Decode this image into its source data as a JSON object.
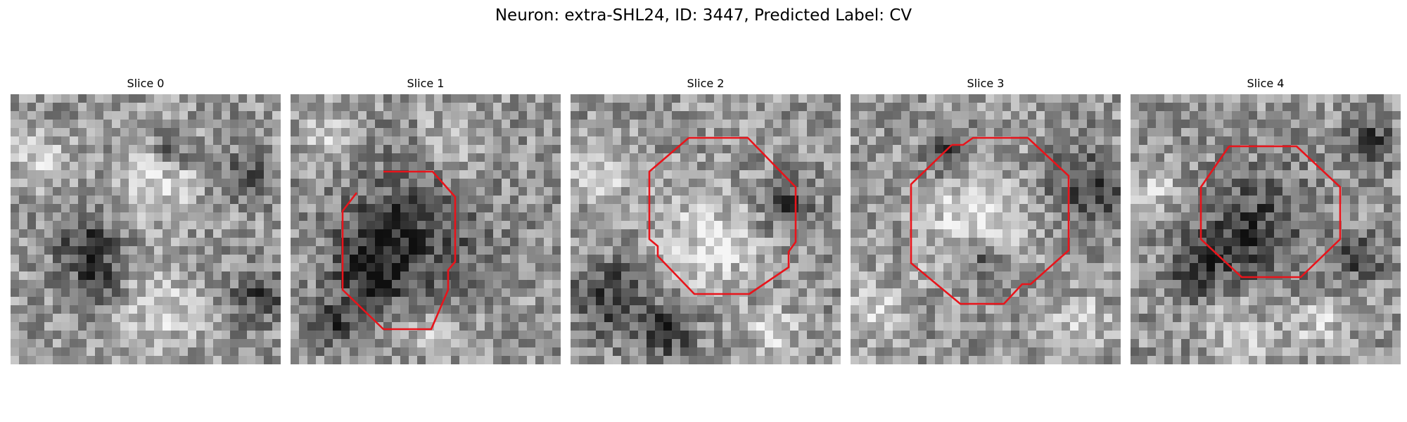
{
  "figure": {
    "title": "Neuron: extra-SHL24, ID: 3447, Predicted Label: CV"
  },
  "contour_color": "#e8141b",
  "panels": [
    {
      "title": "Slice 0",
      "has_contour": false,
      "dark_blobs": [
        [
          0.28,
          0.55,
          0.08
        ],
        [
          0.32,
          0.7,
          0.06
        ],
        [
          0.88,
          0.3,
          0.06
        ],
        [
          0.92,
          0.75,
          0.07
        ],
        [
          0.6,
          0.2,
          0.05
        ]
      ],
      "light_blobs": [
        [
          0.55,
          0.3,
          0.1
        ],
        [
          0.55,
          0.8,
          0.1
        ],
        [
          0.1,
          0.25,
          0.07
        ]
      ]
    },
    {
      "title": "Slice 1",
      "has_contour": true,
      "dark_blobs": [
        [
          0.45,
          0.5,
          0.18
        ],
        [
          0.3,
          0.65,
          0.1
        ],
        [
          0.15,
          0.85,
          0.06
        ]
      ],
      "light_blobs": [
        [
          0.5,
          0.88,
          0.05
        ],
        [
          0.6,
          0.2,
          0.08
        ],
        [
          0.15,
          0.15,
          0.07
        ]
      ]
    },
    {
      "title": "Slice 2",
      "has_contour": true,
      "dark_blobs": [
        [
          0.15,
          0.75,
          0.1
        ],
        [
          0.8,
          0.4,
          0.07
        ],
        [
          0.35,
          0.88,
          0.08
        ]
      ],
      "light_blobs": [
        [
          0.5,
          0.55,
          0.14
        ],
        [
          0.12,
          0.3,
          0.07
        ],
        [
          0.75,
          0.88,
          0.06
        ]
      ]
    },
    {
      "title": "Slice 3",
      "has_contour": true,
      "dark_blobs": [
        [
          0.88,
          0.35,
          0.1
        ],
        [
          0.5,
          0.62,
          0.06
        ],
        [
          0.35,
          0.22,
          0.06
        ]
      ],
      "light_blobs": [
        [
          0.45,
          0.48,
          0.14
        ],
        [
          0.1,
          0.8,
          0.07
        ],
        [
          0.85,
          0.85,
          0.07
        ]
      ]
    },
    {
      "title": "Slice 4",
      "has_contour": true,
      "dark_blobs": [
        [
          0.45,
          0.5,
          0.15
        ],
        [
          0.88,
          0.18,
          0.07
        ],
        [
          0.85,
          0.6,
          0.06
        ],
        [
          0.25,
          0.65,
          0.07
        ]
      ],
      "light_blobs": [
        [
          0.4,
          0.88,
          0.08
        ],
        [
          0.1,
          0.35,
          0.06
        ],
        [
          0.7,
          0.85,
          0.06
        ]
      ]
    }
  ]
}
